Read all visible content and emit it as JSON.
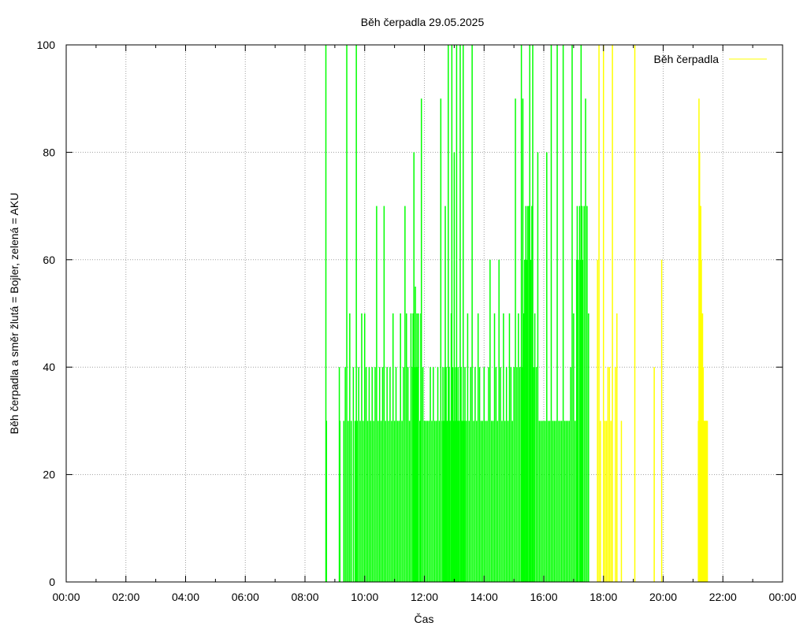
{
  "chart_data": {
    "type": "bar",
    "title": "Běh čerpadla 29.05.2025",
    "xlabel": "Čas",
    "ylabel": "Běh čerpadla a směr žlutá = Bojler, zelená = AKU",
    "xlim": [
      0,
      24
    ],
    "ylim": [
      0,
      100
    ],
    "grid": true,
    "legend": {
      "position": "top-right",
      "label": "Běh čerpadla",
      "color": "#ffff00"
    },
    "x_ticks": [
      {
        "value": 0,
        "label": "00:00"
      },
      {
        "value": 2,
        "label": "02:00"
      },
      {
        "value": 4,
        "label": "04:00"
      },
      {
        "value": 6,
        "label": "06:00"
      },
      {
        "value": 8,
        "label": "08:00"
      },
      {
        "value": 10,
        "label": "10:00"
      },
      {
        "value": 12,
        "label": "12:00"
      },
      {
        "value": 14,
        "label": "14:00"
      },
      {
        "value": 16,
        "label": "16:00"
      },
      {
        "value": 18,
        "label": "18:00"
      },
      {
        "value": 20,
        "label": "20:00"
      },
      {
        "value": 22,
        "label": "22:00"
      },
      {
        "value": 24,
        "label": "00:00"
      }
    ],
    "y_ticks": [
      {
        "value": 0,
        "label": "0"
      },
      {
        "value": 20,
        "label": "20"
      },
      {
        "value": 40,
        "label": "40"
      },
      {
        "value": 60,
        "label": "60"
      },
      {
        "value": 80,
        "label": "80"
      },
      {
        "value": 100,
        "label": "100"
      }
    ],
    "series": [
      {
        "color": "#00ff00",
        "points": [
          [
            8.7,
            100
          ],
          [
            8.72,
            30
          ],
          [
            9.15,
            40
          ],
          [
            9.17,
            30
          ],
          [
            9.3,
            30
          ],
          [
            9.35,
            40
          ],
          [
            9.4,
            100
          ],
          [
            9.45,
            30
          ],
          [
            9.5,
            50
          ],
          [
            9.55,
            30
          ],
          [
            9.62,
            40
          ],
          [
            9.68,
            30
          ],
          [
            9.72,
            100
          ],
          [
            9.75,
            30
          ],
          [
            9.8,
            40
          ],
          [
            9.85,
            30
          ],
          [
            9.9,
            50
          ],
          [
            9.95,
            30
          ],
          [
            10.0,
            50
          ],
          [
            10.05,
            40
          ],
          [
            10.1,
            30
          ],
          [
            10.15,
            40
          ],
          [
            10.2,
            30
          ],
          [
            10.25,
            40
          ],
          [
            10.3,
            30
          ],
          [
            10.35,
            40
          ],
          [
            10.4,
            70
          ],
          [
            10.45,
            30
          ],
          [
            10.5,
            40
          ],
          [
            10.55,
            30
          ],
          [
            10.6,
            40
          ],
          [
            10.65,
            70
          ],
          [
            10.7,
            30
          ],
          [
            10.75,
            40
          ],
          [
            10.8,
            30
          ],
          [
            10.85,
            40
          ],
          [
            10.9,
            30
          ],
          [
            10.95,
            50
          ],
          [
            11.0,
            30
          ],
          [
            11.05,
            40
          ],
          [
            11.1,
            30
          ],
          [
            11.15,
            30
          ],
          [
            11.2,
            50
          ],
          [
            11.25,
            30
          ],
          [
            11.3,
            40
          ],
          [
            11.35,
            70
          ],
          [
            11.4,
            50
          ],
          [
            11.45,
            40
          ],
          [
            11.5,
            30
          ],
          [
            11.55,
            50
          ],
          [
            11.6,
            40
          ],
          [
            11.62,
            50
          ],
          [
            11.65,
            80
          ],
          [
            11.68,
            40
          ],
          [
            11.7,
            55
          ],
          [
            11.72,
            40
          ],
          [
            11.75,
            50
          ],
          [
            11.78,
            40
          ],
          [
            11.8,
            50
          ],
          [
            11.85,
            30
          ],
          [
            11.88,
            50
          ],
          [
            11.9,
            90
          ],
          [
            11.95,
            40
          ],
          [
            12.0,
            30
          ],
          [
            12.05,
            30
          ],
          [
            12.1,
            30
          ],
          [
            12.15,
            30
          ],
          [
            12.2,
            40
          ],
          [
            12.25,
            30
          ],
          [
            12.3,
            40
          ],
          [
            12.35,
            30
          ],
          [
            12.4,
            30
          ],
          [
            12.45,
            40
          ],
          [
            12.5,
            30
          ],
          [
            12.55,
            90
          ],
          [
            12.6,
            30
          ],
          [
            12.62,
            40
          ],
          [
            12.65,
            30
          ],
          [
            12.68,
            40
          ],
          [
            12.7,
            70
          ],
          [
            12.73,
            40
          ],
          [
            12.76,
            30
          ],
          [
            12.8,
            100
          ],
          [
            12.83,
            40
          ],
          [
            12.86,
            30
          ],
          [
            12.9,
            50
          ],
          [
            12.92,
            100
          ],
          [
            12.95,
            40
          ],
          [
            12.98,
            30
          ],
          [
            13.0,
            80
          ],
          [
            13.02,
            30
          ],
          [
            13.05,
            40
          ],
          [
            13.08,
            100
          ],
          [
            13.1,
            30
          ],
          [
            13.13,
            40
          ],
          [
            13.16,
            30
          ],
          [
            13.2,
            100
          ],
          [
            13.23,
            40
          ],
          [
            13.26,
            30
          ],
          [
            13.3,
            100
          ],
          [
            13.33,
            30
          ],
          [
            13.36,
            40
          ],
          [
            13.4,
            30
          ],
          [
            13.45,
            50
          ],
          [
            13.5,
            30
          ],
          [
            13.55,
            40
          ],
          [
            13.6,
            100
          ],
          [
            13.65,
            30
          ],
          [
            13.7,
            40
          ],
          [
            13.75,
            30
          ],
          [
            13.8,
            50
          ],
          [
            13.85,
            40
          ],
          [
            13.9,
            30
          ],
          [
            13.95,
            30
          ],
          [
            14.0,
            40
          ],
          [
            14.05,
            30
          ],
          [
            14.1,
            30
          ],
          [
            14.15,
            40
          ],
          [
            14.2,
            60
          ],
          [
            14.25,
            30
          ],
          [
            14.3,
            30
          ],
          [
            14.35,
            50
          ],
          [
            14.4,
            40
          ],
          [
            14.45,
            30
          ],
          [
            14.5,
            60
          ],
          [
            14.55,
            40
          ],
          [
            14.6,
            30
          ],
          [
            14.65,
            50
          ],
          [
            14.7,
            30
          ],
          [
            14.75,
            40
          ],
          [
            14.8,
            30
          ],
          [
            14.85,
            50
          ],
          [
            14.9,
            40
          ],
          [
            14.95,
            30
          ],
          [
            15.0,
            40
          ],
          [
            15.05,
            90
          ],
          [
            15.1,
            40
          ],
          [
            15.15,
            50
          ],
          [
            15.2,
            40
          ],
          [
            15.25,
            100
          ],
          [
            15.28,
            40
          ],
          [
            15.3,
            90
          ],
          [
            15.33,
            50
          ],
          [
            15.36,
            60
          ],
          [
            15.4,
            70
          ],
          [
            15.43,
            60
          ],
          [
            15.46,
            70
          ],
          [
            15.5,
            70
          ],
          [
            15.53,
            100
          ],
          [
            15.56,
            60
          ],
          [
            15.6,
            70
          ],
          [
            15.63,
            100
          ],
          [
            15.66,
            40
          ],
          [
            15.7,
            50
          ],
          [
            15.75,
            40
          ],
          [
            15.8,
            80
          ],
          [
            15.85,
            30
          ],
          [
            15.9,
            30
          ],
          [
            15.95,
            30
          ],
          [
            16.0,
            30
          ],
          [
            16.05,
            30
          ],
          [
            16.1,
            80
          ],
          [
            16.15,
            30
          ],
          [
            16.2,
            30
          ],
          [
            16.25,
            100
          ],
          [
            16.3,
            30
          ],
          [
            16.35,
            30
          ],
          [
            16.4,
            30
          ],
          [
            16.45,
            100
          ],
          [
            16.5,
            30
          ],
          [
            16.55,
            30
          ],
          [
            16.6,
            30
          ],
          [
            16.65,
            100
          ],
          [
            16.7,
            30
          ],
          [
            16.75,
            30
          ],
          [
            16.8,
            30
          ],
          [
            16.85,
            30
          ],
          [
            16.9,
            40
          ],
          [
            16.95,
            100
          ],
          [
            17.0,
            50
          ],
          [
            17.05,
            30
          ],
          [
            17.1,
            60
          ],
          [
            17.12,
            70
          ],
          [
            17.15,
            60
          ],
          [
            17.2,
            70
          ],
          [
            17.22,
            60
          ],
          [
            17.25,
            100
          ],
          [
            17.28,
            70
          ],
          [
            17.3,
            60
          ],
          [
            17.35,
            70
          ],
          [
            17.4,
            90
          ],
          [
            17.45,
            70
          ],
          [
            17.5,
            50
          ]
        ]
      },
      {
        "color": "#ffff00",
        "points": [
          [
            17.8,
            60
          ],
          [
            17.85,
            100
          ],
          [
            17.9,
            30
          ],
          [
            18.0,
            100
          ],
          [
            18.05,
            30
          ],
          [
            18.1,
            30
          ],
          [
            18.15,
            40
          ],
          [
            18.2,
            40
          ],
          [
            18.25,
            30
          ],
          [
            18.3,
            100
          ],
          [
            18.4,
            40
          ],
          [
            18.45,
            50
          ],
          [
            18.6,
            30
          ],
          [
            19.05,
            100
          ],
          [
            19.7,
            40
          ],
          [
            19.95,
            60
          ],
          [
            21.18,
            30
          ],
          [
            21.2,
            90
          ],
          [
            21.22,
            80
          ],
          [
            21.24,
            70
          ],
          [
            21.26,
            70
          ],
          [
            21.28,
            60
          ],
          [
            21.3,
            50
          ],
          [
            21.32,
            50
          ],
          [
            21.34,
            40
          ],
          [
            21.36,
            30
          ],
          [
            21.38,
            30
          ],
          [
            21.4,
            30
          ],
          [
            21.42,
            30
          ],
          [
            21.44,
            30
          ],
          [
            21.46,
            30
          ],
          [
            21.48,
            30
          ]
        ]
      }
    ]
  }
}
